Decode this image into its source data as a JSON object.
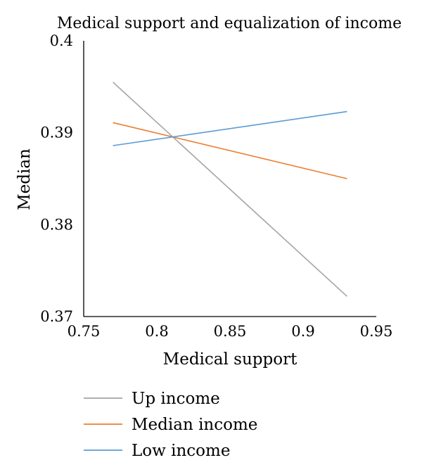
{
  "chart_data": {
    "type": "line",
    "title": "Medical support and equalization of income",
    "xlabel": "Medical support",
    "ylabel": "Median",
    "xlim": [
      0.75,
      0.95
    ],
    "ylim": [
      0.37,
      0.4
    ],
    "x_ticks": [
      "0.75",
      "0.8",
      "0.85",
      "0.9",
      "0.95"
    ],
    "y_ticks": [
      "0.37",
      "0.38",
      "0.39",
      "0.4"
    ],
    "grid": false,
    "legend_position": "bottom",
    "x": [
      0.77,
      0.93
    ],
    "series": [
      {
        "name": "Up income",
        "color": "#a5a5a5",
        "values": [
          0.3955,
          0.3722
        ]
      },
      {
        "name": "Median income",
        "color": "#ed7d31",
        "values": [
          0.3911,
          0.385
        ]
      },
      {
        "name": "Low income",
        "color": "#5b9bd5",
        "values": [
          0.3886,
          0.3923
        ]
      }
    ]
  }
}
